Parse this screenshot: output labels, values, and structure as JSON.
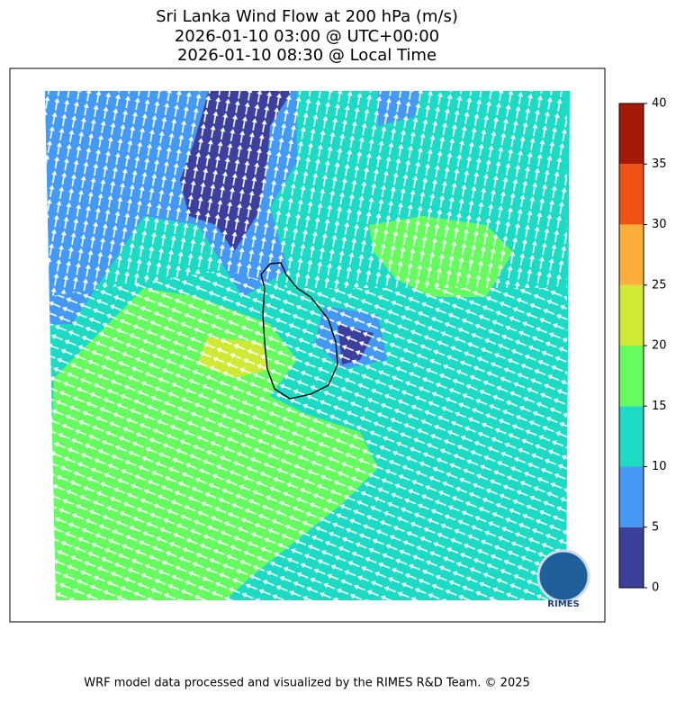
{
  "title": [
    "Sri Lanka Wind Flow at 200 hPa (m/s)",
    "2026-01-10 03:00 @ UTC+00:00",
    "2026-01-10 08:30 @ Local Time"
  ],
  "colorbar": {
    "ticks": [
      0,
      5,
      10,
      15,
      20,
      25,
      30,
      35,
      40
    ],
    "lim": [
      0,
      40
    ],
    "colors": [
      "#3d3f9c",
      "#4499f4",
      "#1ddac4",
      "#66fb5e",
      "#cfe934",
      "#fbae3a",
      "#ef5214",
      "#a51a04"
    ]
  },
  "logo_text": "RIMES",
  "footer": "WRF model data processed and visualized by the RIMES R&D Team. © 2025"
}
